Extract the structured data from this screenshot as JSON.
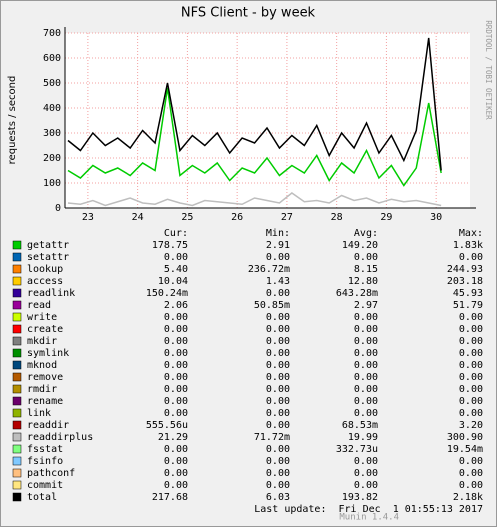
{
  "chart_data": {
    "type": "line",
    "title": "NFS Client - by week",
    "y_label": "requests / second",
    "side_text": "RRDTOOL / TOBI OETIKER",
    "xlim": [
      22.54,
      30.68
    ],
    "xticks": [
      23,
      24,
      25,
      26,
      27,
      28,
      29,
      30
    ],
    "ylim": [
      0,
      700
    ],
    "yticks": [
      0,
      100,
      200,
      300,
      400,
      500,
      600,
      700
    ],
    "grid": true,
    "x": [
      22.6,
      22.85,
      23.1,
      23.35,
      23.6,
      23.85,
      24.1,
      24.35,
      24.6,
      24.85,
      25.1,
      25.35,
      25.6,
      25.85,
      26.1,
      26.35,
      26.6,
      26.85,
      27.1,
      27.35,
      27.6,
      27.85,
      28.1,
      28.35,
      28.6,
      28.85,
      29.1,
      29.35,
      29.6,
      29.85,
      30.1
    ],
    "stat_headers": [
      "Cur:",
      "Min:",
      "Avg:",
      "Max:"
    ],
    "series": [
      {
        "name": "getattr",
        "color": "#00cc00",
        "stats": [
          "178.75",
          "2.91",
          "149.20",
          "1.83k"
        ],
        "values": [
          150,
          120,
          170,
          140,
          160,
          130,
          180,
          150,
          480,
          130,
          170,
          140,
          180,
          110,
          160,
          140,
          200,
          130,
          170,
          140,
          210,
          110,
          180,
          140,
          230,
          120,
          170,
          90,
          160,
          420,
          140
        ]
      },
      {
        "name": "setattr",
        "color": "#0066b3",
        "stats": [
          "0.00",
          "0.00",
          "0.00",
          "0.00"
        ]
      },
      {
        "name": "lookup",
        "color": "#ff8000",
        "stats": [
          "5.40",
          "236.72m",
          "8.15",
          "244.93"
        ]
      },
      {
        "name": "access",
        "color": "#ffcc00",
        "stats": [
          "10.04",
          "1.43",
          "12.80",
          "203.18"
        ]
      },
      {
        "name": "readlink",
        "color": "#330099",
        "stats": [
          "150.24m",
          "0.00",
          "643.28m",
          "45.93"
        ]
      },
      {
        "name": "read",
        "color": "#990099",
        "stats": [
          "2.06",
          "50.85m",
          "2.97",
          "51.79"
        ]
      },
      {
        "name": "write",
        "color": "#ccff00",
        "stats": [
          "0.00",
          "0.00",
          "0.00",
          "0.00"
        ]
      },
      {
        "name": "create",
        "color": "#ff0000",
        "stats": [
          "0.00",
          "0.00",
          "0.00",
          "0.00"
        ]
      },
      {
        "name": "mkdir",
        "color": "#808080",
        "stats": [
          "0.00",
          "0.00",
          "0.00",
          "0.00"
        ]
      },
      {
        "name": "symlink",
        "color": "#008f00",
        "stats": [
          "0.00",
          "0.00",
          "0.00",
          "0.00"
        ]
      },
      {
        "name": "mknod",
        "color": "#00487d",
        "stats": [
          "0.00",
          "0.00",
          "0.00",
          "0.00"
        ]
      },
      {
        "name": "remove",
        "color": "#b35a00",
        "stats": [
          "0.00",
          "0.00",
          "0.00",
          "0.00"
        ]
      },
      {
        "name": "rmdir",
        "color": "#b38f00",
        "stats": [
          "0.00",
          "0.00",
          "0.00",
          "0.00"
        ]
      },
      {
        "name": "rename",
        "color": "#6b006b",
        "stats": [
          "0.00",
          "0.00",
          "0.00",
          "0.00"
        ]
      },
      {
        "name": "link",
        "color": "#8fb300",
        "stats": [
          "0.00",
          "0.00",
          "0.00",
          "0.00"
        ]
      },
      {
        "name": "readdir",
        "color": "#b30000",
        "stats": [
          "555.56u",
          "0.00",
          "68.53m",
          "3.20"
        ]
      },
      {
        "name": "readdirplus",
        "color": "#bebebe",
        "stats": [
          "21.29",
          "71.72m",
          "19.99",
          "300.90"
        ],
        "values": [
          20,
          15,
          30,
          10,
          25,
          40,
          20,
          15,
          35,
          20,
          10,
          30,
          25,
          20,
          15,
          40,
          30,
          20,
          60,
          25,
          30,
          20,
          50,
          30,
          40,
          20,
          35,
          25,
          30,
          20,
          10
        ]
      },
      {
        "name": "fsstat",
        "color": "#80ff80",
        "stats": [
          "0.00",
          "0.00",
          "332.73u",
          "19.54m"
        ]
      },
      {
        "name": "fsinfo",
        "color": "#80c9ff",
        "stats": [
          "0.00",
          "0.00",
          "0.00",
          "0.00"
        ]
      },
      {
        "name": "pathconf",
        "color": "#ffc080",
        "stats": [
          "0.00",
          "0.00",
          "0.00",
          "0.00"
        ]
      },
      {
        "name": "commit",
        "color": "#ffe680",
        "stats": [
          "0.00",
          "0.00",
          "0.00",
          "0.00"
        ]
      },
      {
        "name": "total",
        "color": "#000000",
        "stats": [
          "217.68",
          "6.03",
          "193.82",
          "2.18k"
        ],
        "values": [
          270,
          230,
          300,
          250,
          280,
          240,
          310,
          260,
          500,
          230,
          290,
          250,
          300,
          220,
          280,
          260,
          320,
          240,
          290,
          250,
          330,
          210,
          300,
          240,
          340,
          220,
          290,
          190,
          310,
          680,
          150
        ]
      }
    ],
    "footer_update": "Last update:  Fri Dec  1 01:55:13 2017",
    "footer_version": "Munin 1.4.4"
  }
}
